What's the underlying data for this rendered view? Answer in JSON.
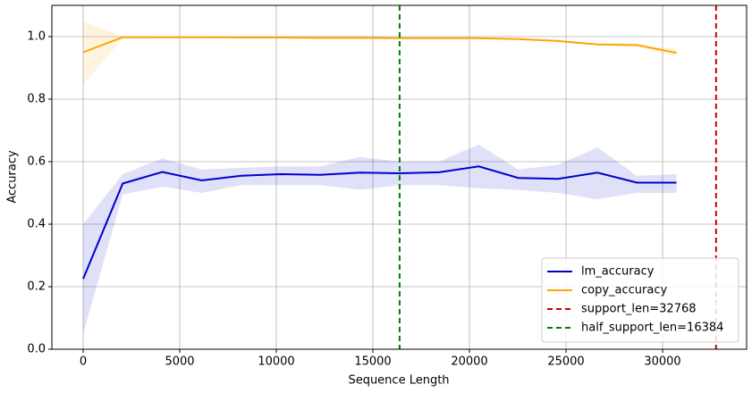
{
  "chart_data": {
    "type": "line",
    "xlabel": "Sequence Length",
    "ylabel": "Accuracy",
    "x": [
      0,
      2048,
      4096,
      6144,
      8192,
      10240,
      12288,
      14336,
      16384,
      18432,
      20480,
      22528,
      24576,
      26624,
      28672,
      30720
    ],
    "series": [
      {
        "name": "lm_accuracy",
        "color": "#0000cc",
        "values": [
          0.225,
          0.53,
          0.567,
          0.54,
          0.555,
          0.56,
          0.558,
          0.565,
          0.563,
          0.566,
          0.585,
          0.548,
          0.545,
          0.565,
          0.533,
          0.533
        ],
        "lower": [
          0.05,
          0.495,
          0.52,
          0.5,
          0.525,
          0.525,
          0.525,
          0.51,
          0.525,
          0.525,
          0.515,
          0.51,
          0.5,
          0.48,
          0.5,
          0.5
        ],
        "upper": [
          0.4,
          0.56,
          0.61,
          0.575,
          0.58,
          0.585,
          0.585,
          0.615,
          0.6,
          0.6,
          0.655,
          0.575,
          0.59,
          0.645,
          0.555,
          0.56
        ]
      },
      {
        "name": "copy_accuracy",
        "color": "#ffa500",
        "values": [
          0.95,
          0.998,
          0.998,
          0.998,
          0.997,
          0.997,
          0.996,
          0.996,
          0.995,
          0.995,
          0.995,
          0.992,
          0.986,
          0.975,
          0.973,
          0.948
        ],
        "lower": [
          0.845,
          0.995,
          0.996,
          0.996,
          0.995,
          0.995,
          0.994,
          0.994,
          0.993,
          0.993,
          0.993,
          0.99,
          0.983,
          0.972,
          0.968,
          0.935
        ],
        "upper": [
          1.05,
          1.0,
          1.0,
          1.0,
          0.999,
          0.999,
          0.998,
          0.998,
          0.997,
          0.997,
          0.997,
          0.995,
          0.99,
          0.979,
          0.978,
          0.96
        ]
      }
    ],
    "vlines": [
      {
        "name": "support_len=32768",
        "x": 32768,
        "color": "#cc0000"
      },
      {
        "name": "half_support_len=16384",
        "x": 16384,
        "color": "#007f00"
      }
    ],
    "xlim": [
      -1620,
      34350
    ],
    "ylim": [
      0,
      1.1
    ],
    "xticks": [
      0,
      5000,
      10000,
      15000,
      20000,
      25000,
      30000
    ],
    "yticks": [
      {
        "value": 0,
        "label": "0.0"
      },
      0.2,
      0.4,
      0.6,
      0.8,
      {
        "value": 1,
        "label": "1.0"
      }
    ],
    "grid": true,
    "legend": "lower right"
  }
}
